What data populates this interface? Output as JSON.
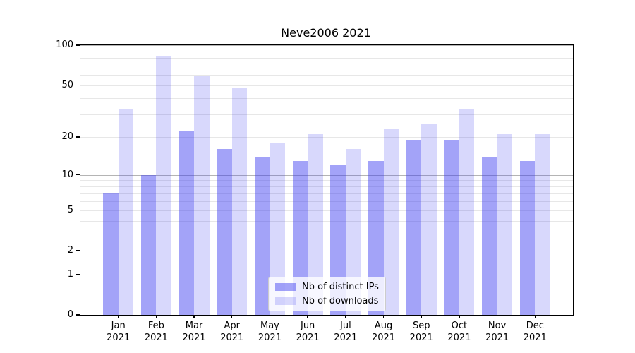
{
  "window": {
    "title": "Neve2006 2021"
  },
  "chart_data": {
    "type": "bar",
    "title": "Neve2006 2021",
    "categories": [
      "Jan 2021",
      "Feb 2021",
      "Mar 2021",
      "Apr 2021",
      "May 2021",
      "Jun 2021",
      "Jul 2021",
      "Aug 2021",
      "Sep 2021",
      "Oct 2021",
      "Nov 2021",
      "Dec 2021"
    ],
    "series": [
      {
        "name": "Nb of distinct IPs",
        "color": "rgba(60,60,240,0.47)",
        "values": [
          7,
          10,
          22,
          16,
          14,
          13,
          12,
          13,
          19,
          19,
          14,
          13
        ]
      },
      {
        "name": "Nb of downloads",
        "color": "rgba(60,60,240,0.20)",
        "values": [
          33,
          83,
          58,
          48,
          18,
          21,
          16,
          23,
          25,
          33,
          21,
          21
        ]
      }
    ],
    "xlabel": "",
    "ylabel": "",
    "yscale": "log1p",
    "ylim": [
      0,
      100
    ],
    "yticks": [
      0,
      1,
      2,
      5,
      10,
      20,
      50,
      100
    ],
    "grid": true,
    "grid_minor": [
      2,
      3,
      4,
      5,
      6,
      7,
      8,
      9,
      20,
      30,
      40,
      50,
      60,
      70,
      80,
      90
    ],
    "grid_major": [
      1,
      10,
      100
    ],
    "legend_position": "inside lower-center-right",
    "colors": {
      "axis": "#000000",
      "grid_minor": "#e7e7e7",
      "grid_major": "#b4b4b4",
      "legend_border": "#cccccc",
      "background": "#ffffff"
    }
  }
}
